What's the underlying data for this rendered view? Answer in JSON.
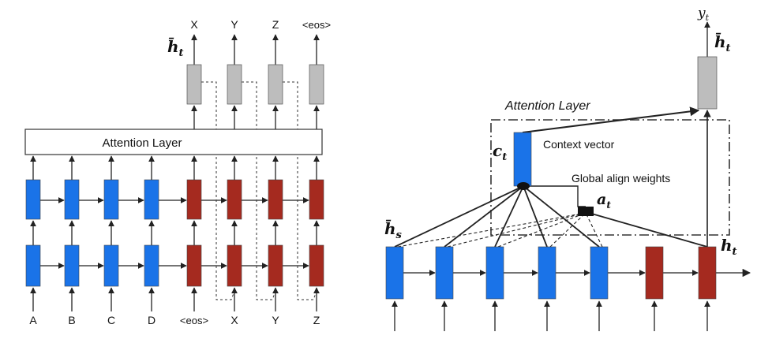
{
  "colors": {
    "encoder": "#1a73e8",
    "decoder": "#a52a1f",
    "output": "#bdbdbd",
    "line": "#222222"
  },
  "left": {
    "attention_layer_label": "Attention Layer",
    "h_bar_t_label": "h̄",
    "h_bar_t_sub": "t",
    "inputs": [
      "A",
      "B",
      "C",
      "D",
      "<eos>",
      "X",
      "Y",
      "Z"
    ],
    "outputs": [
      "X",
      "Y",
      "Z",
      "<eos>"
    ]
  },
  "right": {
    "attention_layer_label": "Attention Layer",
    "context_vector_label": "Context vector",
    "global_align_label": "Global align weights",
    "y_t_label": "y",
    "y_t_sub": "t",
    "h_bar_t_label": "h̄",
    "h_bar_t_sub": "t",
    "c_t_label": "c",
    "c_t_sub": "t",
    "a_t_label": "a",
    "a_t_sub": "t",
    "h_bar_s_label": "h̄",
    "h_bar_s_sub": "s",
    "h_t_label": "h",
    "h_t_sub": "t"
  }
}
